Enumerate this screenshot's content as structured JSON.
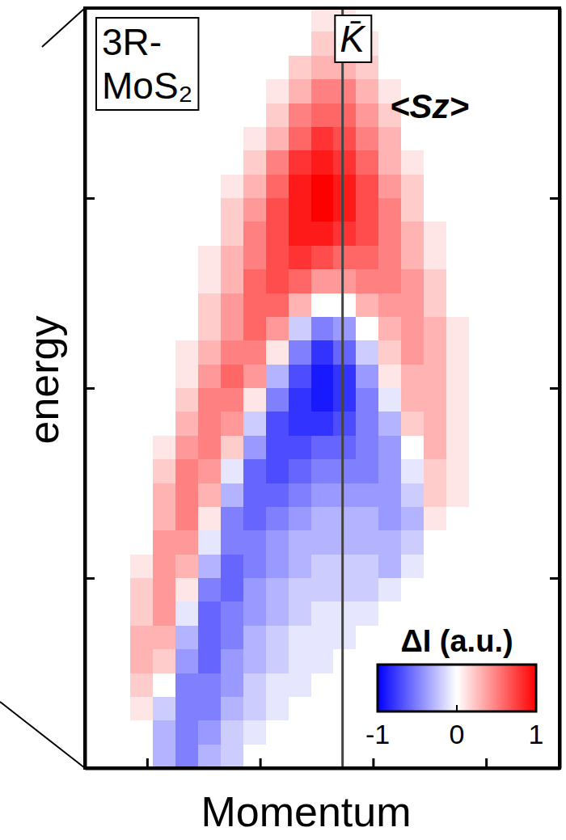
{
  "chart_data": {
    "type": "heatmap",
    "xlabel": "Momentum",
    "ylabel": "energy",
    "sample_label": [
      "3R-",
      "MoS₂"
    ],
    "panel_label": "<Sz>",
    "vline": {
      "label": "K̄",
      "x": 2.73
    },
    "xlim": [
      0.45,
      4.65
    ],
    "ylim": [
      0,
      4
    ],
    "xticks": [
      1,
      2,
      3,
      4
    ],
    "yticks": [
      1,
      2,
      3
    ],
    "tick_labels": false,
    "x": [
      0.55,
      0.75,
      0.95,
      1.15,
      1.35,
      1.55,
      1.75,
      1.95,
      2.15,
      2.35,
      2.55,
      2.75,
      2.95,
      3.15,
      3.35,
      3.55,
      3.75,
      3.95,
      4.15,
      4.35,
      4.55
    ],
    "y": [
      3.9375,
      3.8125,
      3.6875,
      3.5625,
      3.4375,
      3.3125,
      3.1875,
      3.0625,
      2.9375,
      2.8125,
      2.6875,
      2.5625,
      2.4375,
      2.3125,
      2.1875,
      2.0625,
      1.9375,
      1.8125,
      1.6875,
      1.5625,
      1.4375,
      1.3125,
      1.1875,
      1.0625,
      0.9375,
      0.8125,
      0.6875,
      0.5625,
      0.4375,
      0.3125,
      0.1875,
      0.0625
    ],
    "z": [
      [
        0,
        0,
        0,
        0,
        0,
        0,
        0,
        0,
        0,
        0,
        0.1,
        0.1,
        0,
        0,
        0,
        0,
        0,
        0,
        0,
        0,
        0
      ],
      [
        0,
        0,
        0,
        0,
        0,
        0,
        0,
        0,
        0,
        0,
        0.2,
        0.2,
        0.1,
        0,
        0,
        0,
        0,
        0,
        0,
        0,
        0
      ],
      [
        0,
        0,
        0,
        0,
        0,
        0,
        0,
        0,
        0,
        0.2,
        0.3,
        0.3,
        0.2,
        0,
        0,
        0,
        0,
        0,
        0,
        0,
        0
      ],
      [
        0,
        0,
        0,
        0,
        0,
        0,
        0,
        0,
        0.1,
        0.3,
        0.5,
        0.5,
        0.3,
        0.1,
        0,
        0,
        0,
        0,
        0,
        0,
        0
      ],
      [
        0,
        0,
        0,
        0,
        0,
        0,
        0,
        0,
        0.2,
        0.5,
        0.6,
        0.6,
        0.4,
        0.2,
        0,
        0,
        0,
        0,
        0,
        0,
        0
      ],
      [
        0,
        0,
        0,
        0,
        0,
        0,
        0,
        0.1,
        0.3,
        0.6,
        0.8,
        0.7,
        0.5,
        0.3,
        0,
        0,
        0,
        0,
        0,
        0,
        0
      ],
      [
        0,
        0,
        0,
        0,
        0,
        0,
        0,
        0.2,
        0.5,
        0.8,
        0.9,
        0.8,
        0.6,
        0.3,
        0.1,
        0,
        0,
        0,
        0,
        0,
        0
      ],
      [
        0,
        0,
        0,
        0,
        0,
        0,
        0.1,
        0.3,
        0.6,
        0.9,
        1,
        0.9,
        0.7,
        0.4,
        0.2,
        0,
        0,
        0,
        0,
        0,
        0
      ],
      [
        0,
        0,
        0,
        0,
        0,
        0,
        0.2,
        0.4,
        0.7,
        0.9,
        1,
        0.9,
        0.7,
        0.5,
        0.2,
        0,
        0,
        0,
        0,
        0,
        0
      ],
      [
        0,
        0,
        0,
        0,
        0,
        0,
        0.2,
        0.5,
        0.7,
        0.9,
        0.9,
        0.8,
        0.7,
        0.5,
        0.3,
        0.1,
        0,
        0,
        0,
        0,
        0
      ],
      [
        0,
        0,
        0,
        0,
        0,
        0.1,
        0.3,
        0.5,
        0.7,
        0.8,
        0.7,
        0.6,
        0.6,
        0.5,
        0.3,
        0.1,
        0,
        0,
        0,
        0,
        0
      ],
      [
        0,
        0,
        0,
        0,
        0,
        0.1,
        0.3,
        0.6,
        0.7,
        0.6,
        0.4,
        0.4,
        0.5,
        0.5,
        0.4,
        0.2,
        0,
        0,
        0,
        0,
        0
      ],
      [
        0,
        0,
        0,
        0,
        0,
        0.2,
        0.4,
        0.6,
        0.6,
        0.3,
        0,
        0,
        0.3,
        0.4,
        0.4,
        0.2,
        0,
        0,
        0,
        0,
        0
      ],
      [
        0,
        0,
        0,
        0,
        0,
        0.2,
        0.4,
        0.6,
        0.4,
        -0.2,
        -0.5,
        -0.4,
        0,
        0.3,
        0.4,
        0.3,
        0.1,
        0,
        0,
        0,
        0
      ],
      [
        0,
        0,
        0,
        0,
        0.1,
        0.3,
        0.5,
        0.5,
        0.1,
        -0.5,
        -0.8,
        -0.6,
        -0.2,
        0.2,
        0.4,
        0.3,
        0.1,
        0,
        0,
        0,
        0
      ],
      [
        0,
        0,
        0,
        0,
        0.1,
        0.4,
        0.6,
        0.4,
        -0.3,
        -0.7,
        -0.9,
        -0.8,
        -0.4,
        0.1,
        0.3,
        0.3,
        0.1,
        0,
        0,
        0,
        0
      ],
      [
        0,
        0,
        0,
        0,
        0.2,
        0.5,
        0.5,
        0.1,
        -0.5,
        -0.8,
        -0.9,
        -0.8,
        -0.5,
        -0.1,
        0.3,
        0.3,
        0.1,
        0,
        0,
        0,
        0
      ],
      [
        0,
        0,
        0,
        0,
        0.3,
        0.5,
        0.4,
        -0.2,
        -0.7,
        -0.8,
        -0.8,
        -0.7,
        -0.5,
        -0.3,
        0.2,
        0.3,
        0.1,
        0,
        0,
        0,
        0
      ],
      [
        0,
        0,
        0,
        0.1,
        0.4,
        0.5,
        0.2,
        -0.4,
        -0.7,
        -0.7,
        -0.6,
        -0.6,
        -0.5,
        -0.4,
        0,
        0.3,
        0.1,
        0,
        0,
        0,
        0
      ],
      [
        0,
        0,
        0,
        0.2,
        0.5,
        0.4,
        -0.1,
        -0.6,
        -0.7,
        -0.6,
        -0.5,
        -0.5,
        -0.5,
        -0.4,
        -0.1,
        0.2,
        0.1,
        0,
        0,
        0,
        0
      ],
      [
        0,
        0,
        0,
        0.3,
        0.5,
        0.3,
        -0.3,
        -0.6,
        -0.6,
        -0.5,
        -0.4,
        -0.4,
        -0.4,
        -0.4,
        -0.2,
        0.2,
        0.1,
        0,
        0,
        0,
        0
      ],
      [
        0,
        0,
        0,
        0.3,
        0.5,
        0.1,
        -0.5,
        -0.6,
        -0.5,
        -0.4,
        -0.3,
        -0.3,
        -0.3,
        -0.4,
        -0.3,
        0.1,
        0,
        0,
        0,
        0,
        0
      ],
      [
        0,
        0,
        0,
        0.4,
        0.4,
        -0.1,
        -0.5,
        -0.5,
        -0.4,
        -0.3,
        -0.3,
        -0.3,
        -0.3,
        -0.3,
        -0.2,
        0,
        0,
        0,
        0,
        0,
        0
      ],
      [
        0,
        0,
        0.1,
        0.4,
        0.3,
        -0.3,
        -0.6,
        -0.5,
        -0.4,
        -0.3,
        -0.2,
        -0.2,
        -0.2,
        -0.3,
        -0.1,
        0,
        0,
        0,
        0,
        0,
        0
      ],
      [
        0,
        0,
        0.2,
        0.4,
        0.1,
        -0.5,
        -0.6,
        -0.4,
        -0.3,
        -0.2,
        -0.2,
        -0.2,
        -0.2,
        -0.1,
        0,
        0,
        0,
        0,
        0,
        0,
        0
      ],
      [
        0,
        0,
        0.2,
        0.4,
        -0.1,
        -0.6,
        -0.5,
        -0.4,
        -0.3,
        -0.2,
        -0.1,
        -0.1,
        -0.1,
        0,
        0,
        0,
        0,
        0,
        0,
        0,
        0
      ],
      [
        0,
        0,
        0.3,
        0.3,
        -0.3,
        -0.6,
        -0.5,
        -0.3,
        -0.2,
        -0.1,
        -0.1,
        -0.1,
        0,
        0,
        0,
        0,
        0,
        0,
        0,
        0,
        0
      ],
      [
        0,
        0,
        0.3,
        0.2,
        -0.4,
        -0.6,
        -0.4,
        -0.3,
        -0.2,
        -0.1,
        -0.1,
        0,
        0,
        0,
        0,
        0,
        0,
        0,
        0,
        0,
        0
      ],
      [
        0,
        0,
        0.2,
        0,
        -0.5,
        -0.5,
        -0.4,
        -0.2,
        -0.1,
        -0.1,
        0,
        0,
        0,
        0,
        0,
        0,
        0,
        0,
        0,
        0,
        0
      ],
      [
        0,
        0,
        0.1,
        -0.2,
        -0.5,
        -0.5,
        -0.3,
        -0.2,
        -0.1,
        0,
        0,
        0,
        0,
        0,
        0,
        0,
        0,
        0,
        0,
        0,
        0
      ],
      [
        0,
        0,
        0,
        -0.3,
        -0.5,
        -0.4,
        -0.2,
        -0.1,
        0,
        0,
        0,
        0,
        0,
        0,
        0,
        0,
        0,
        0,
        0,
        0,
        0
      ],
      [
        0,
        0,
        0,
        -0.3,
        -0.5,
        -0.3,
        -0.2,
        0,
        0,
        0,
        0,
        0,
        0,
        0,
        0,
        0,
        0,
        0,
        0,
        0,
        0
      ]
    ],
    "colorbar": {
      "label": "ΔI (a.u.)",
      "range": [
        -1,
        1
      ],
      "ticks": [
        -1,
        0,
        1
      ]
    }
  }
}
